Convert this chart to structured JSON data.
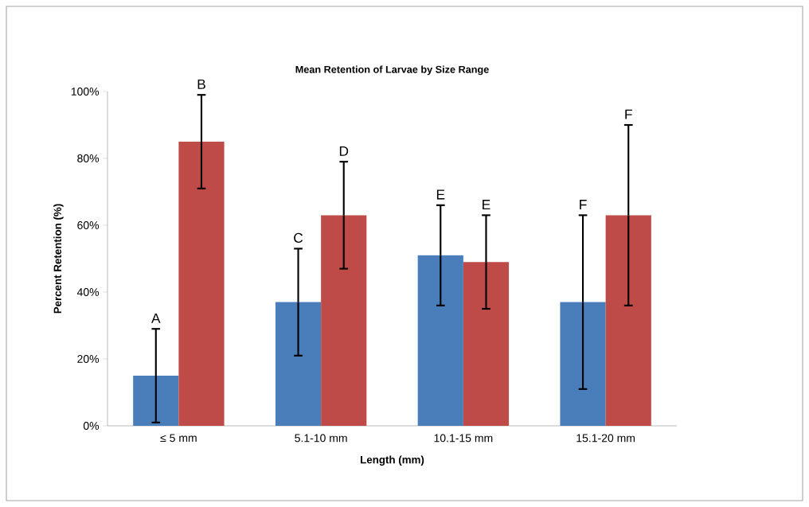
{
  "chart_data": {
    "type": "bar",
    "title": "Mean Retention of Larvae by Size Range",
    "xlabel": "Length (mm)",
    "ylabel": "Percent Retention (%)",
    "categories": [
      "≤ 5 mm",
      "5.1-10 mm",
      "10.1-15 mm",
      "15.1-20 mm"
    ],
    "series": [
      {
        "color": "#4a7ebb",
        "values": [
          15,
          37,
          51,
          37
        ],
        "errors": [
          14,
          16,
          15,
          26
        ]
      },
      {
        "color": "#be4b48",
        "values": [
          85,
          63,
          49,
          63
        ],
        "errors": [
          14,
          16,
          14,
          27
        ]
      }
    ],
    "ylim": [
      0,
      100
    ],
    "yticks": [
      {
        "value": 0,
        "label": "0%"
      },
      {
        "value": 20,
        "label": "20%"
      },
      {
        "value": 40,
        "label": "40%"
      },
      {
        "value": 60,
        "label": "60%"
      },
      {
        "value": 80,
        "label": "80%"
      },
      {
        "value": 100,
        "label": "100%"
      }
    ],
    "annotations": [
      "A",
      "B",
      "C",
      "D",
      "E",
      "E",
      "F",
      "F"
    ]
  }
}
